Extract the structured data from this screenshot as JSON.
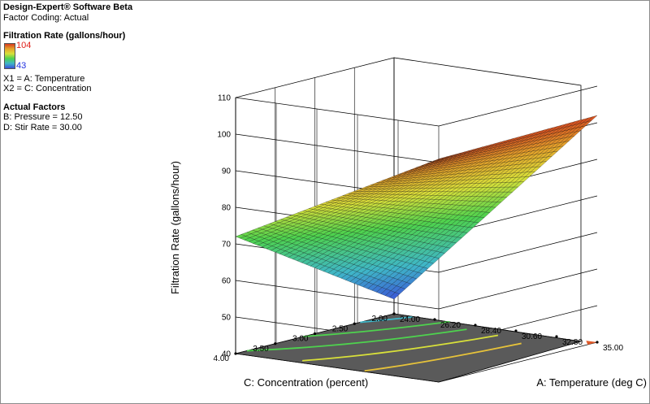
{
  "header": {
    "app_title": "Design-Expert® Software Beta",
    "factor_coding": "Factor Coding: Actual"
  },
  "legend": {
    "title": "Filtration Rate (gallons/hour)",
    "max": "104",
    "min": "43"
  },
  "axes_info": {
    "x1": "X1 = A: Temperature",
    "x2": "X2 = C: Concentration"
  },
  "actual_factors": {
    "title": "Actual Factors",
    "items": [
      "B: Pressure = 12.50",
      "D: Stir Rate = 30.00"
    ]
  },
  "colors": {
    "low": "#3a4fd8",
    "high": "#d63a1e",
    "floor": "#5a5a5a",
    "grid": "#000000"
  },
  "chart_data": {
    "type": "surface",
    "title": "",
    "zlabel": "Filtration Rate (gallons/hour)",
    "xlabel": "A: Temperature (deg C)",
    "ylabel": "C: Concentration (percent)",
    "x_ticks": [
      "24.00",
      "26.20",
      "28.40",
      "30.60",
      "32.80",
      "35.00"
    ],
    "y_ticks": [
      "2.00",
      "2.50",
      "3.00",
      "3.50",
      "4.00"
    ],
    "z_ticks": [
      "40",
      "50",
      "60",
      "70",
      "80",
      "90",
      "100",
      "110"
    ],
    "xlim": [
      24,
      35
    ],
    "ylim": [
      2,
      4
    ],
    "zlim": [
      40,
      110
    ],
    "corners": [
      {
        "temperature": 24,
        "concentration": 4,
        "rate": 72
      },
      {
        "temperature": 35,
        "concentration": 4,
        "rate": 101
      },
      {
        "temperature": 24,
        "concentration": 2,
        "rate": 44
      },
      {
        "temperature": 35,
        "concentration": 2,
        "rate": 102
      }
    ],
    "color_range": [
      43,
      104
    ],
    "grid_on": true
  }
}
